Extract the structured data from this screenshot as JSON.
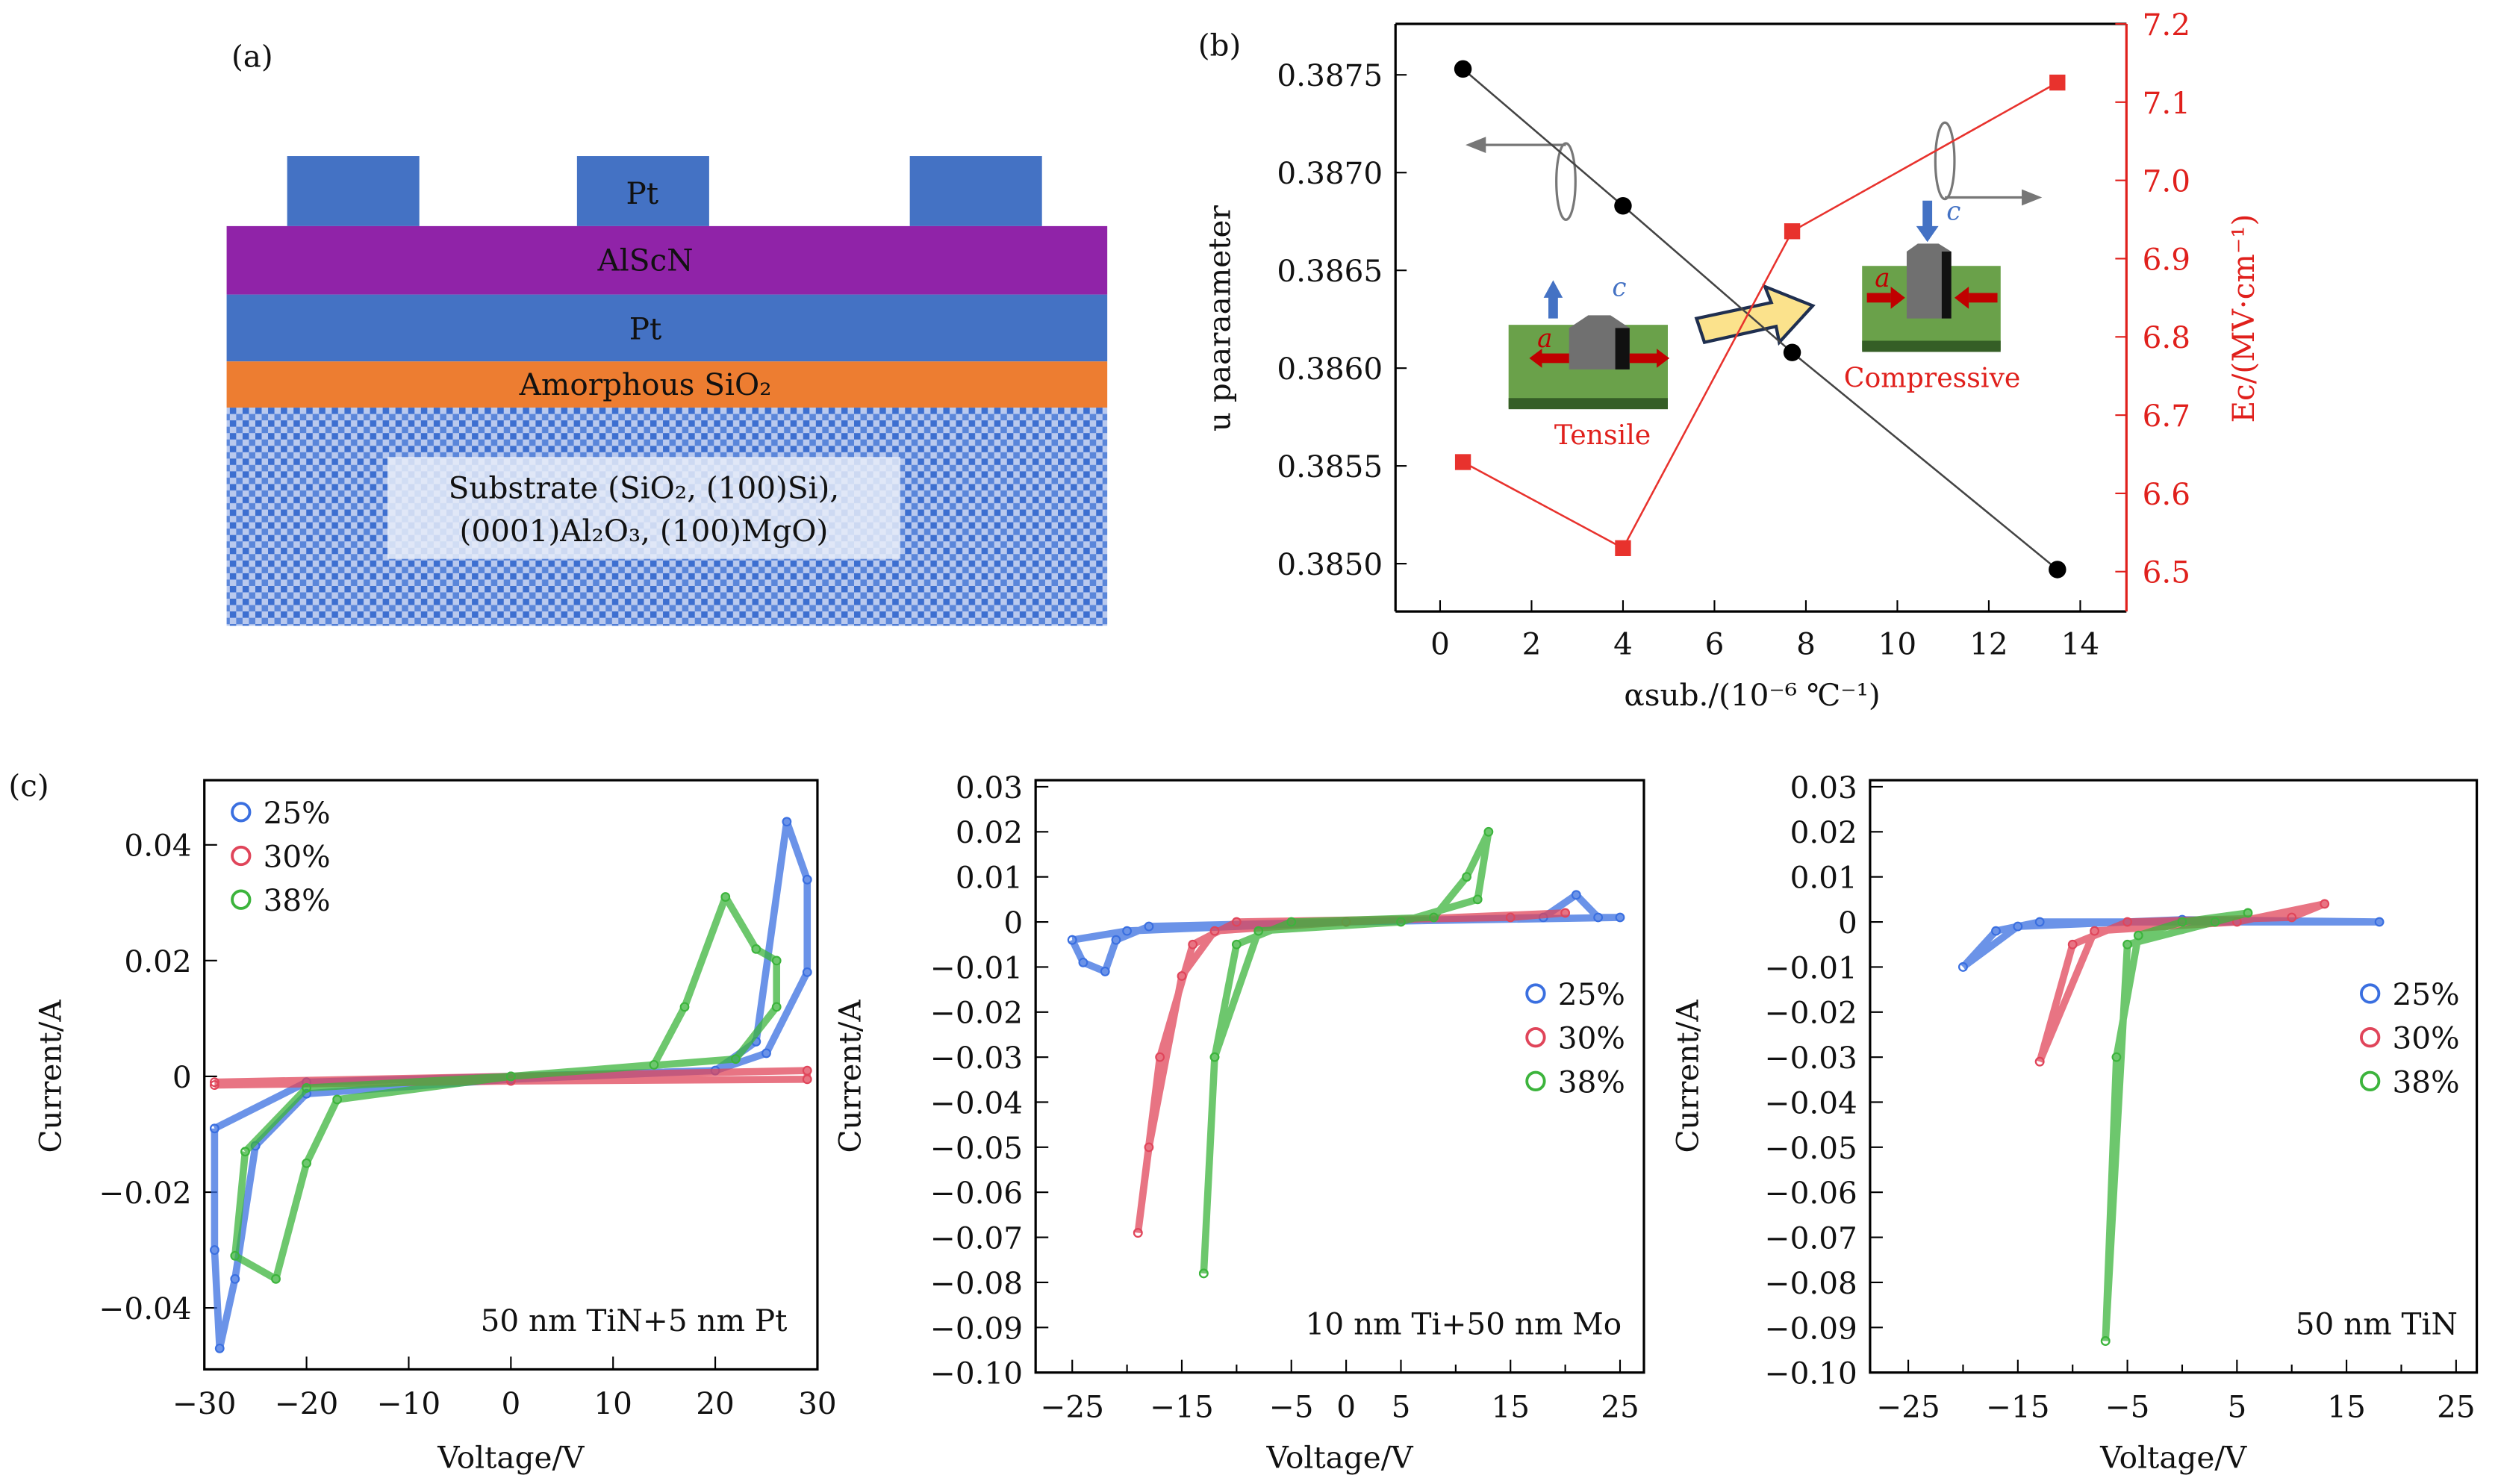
{
  "panel_a": {
    "label": "(a)",
    "electrode": "Pt",
    "layer_alscn": "AlScN",
    "layer_pt": "Pt",
    "layer_sio2": "Amorphous SiO₂",
    "substrate_line1": "Substrate (SiO₂, (100)Si),",
    "substrate_line2": "(0001)Al₂O₃, (100)MgO)",
    "colors": {
      "pt": "#4472c4",
      "alscn": "#9023a8",
      "sio2": "#ed7d31",
      "substrate": "#3d6fd0"
    }
  },
  "panel_b": {
    "label": "(b)",
    "inset_tensile": "Tensile",
    "inset_compressive": "Compressive",
    "inset_a": "a",
    "inset_c": "c"
  },
  "panel_c": {
    "label": "(c)"
  },
  "chart_data": [
    {
      "type": "line",
      "id": "b",
      "xlabel": "αsub./(10⁻⁶ ℃⁻¹)",
      "ylabel": "u paaraameter",
      "y2label": "Ec/(MV·cm⁻¹)",
      "xlim": [
        -1,
        15
      ],
      "ylim": [
        0.3848,
        0.38785
      ],
      "y2lim": [
        6.45,
        7.2
      ],
      "xticks": [
        0,
        2,
        4,
        6,
        8,
        10,
        12,
        14
      ],
      "yticks": [
        "0.3850",
        "0.3855",
        "0.3860",
        "0.3865",
        "0.3870",
        "0.3875"
      ],
      "y2ticks": [
        "6.5",
        "6.6",
        "6.7",
        "6.8",
        "6.9",
        "7.0",
        "7.1",
        "7.2"
      ],
      "series": [
        {
          "name": "u parameter",
          "axis": "left",
          "color": "#000000",
          "marker": "circle",
          "x": [
            0.5,
            4,
            7.7,
            13.5
          ],
          "y": [
            0.38753,
            0.38683,
            0.38608,
            0.38497
          ]
        },
        {
          "name": "Ec",
          "axis": "right",
          "color": "#e8322d",
          "marker": "square",
          "x": [
            0.5,
            4,
            7.7,
            13.5
          ],
          "y": [
            6.64,
            6.53,
            6.935,
            7.125
          ]
        }
      ]
    },
    {
      "type": "scatter",
      "id": "c1",
      "xlabel": "Voltage/V",
      "ylabel": "Current/A",
      "annotation": "50 nm TiN+5 nm Pt",
      "xlim": [
        -30,
        30
      ],
      "ylim": [
        -0.0505,
        0.0515
      ],
      "xticks": [
        "−30",
        "−20",
        "−10",
        "0",
        "10",
        "20",
        "30"
      ],
      "xtick_vals": [
        -30,
        -20,
        -10,
        0,
        10,
        20,
        30
      ],
      "yticks": [
        "−0.04",
        "−0.02",
        "0",
        "0.02",
        "0.04"
      ],
      "ytick_vals": [
        -0.04,
        -0.02,
        0,
        0.02,
        0.04
      ],
      "legend": "top-left",
      "series": [
        {
          "name": "25%",
          "color": "#3a6fe0",
          "points": [
            [
              -29,
              -0.009
            ],
            [
              -20,
              -0.001
            ],
            [
              0,
              0
            ],
            [
              20,
              0.001
            ],
            [
              24,
              0.006
            ],
            [
              27,
              0.044
            ],
            [
              29,
              0.034
            ],
            [
              29,
              0.018
            ],
            [
              25,
              0.004
            ],
            [
              20,
              0.001
            ],
            [
              0,
              -0.0005
            ],
            [
              -20,
              -0.003
            ],
            [
              -25,
              -0.012
            ],
            [
              -27,
              -0.035
            ],
            [
              -28.5,
              -0.047
            ],
            [
              -29,
              -0.03
            ],
            [
              -29,
              -0.009
            ]
          ]
        },
        {
          "name": "30%",
          "color": "#e0455a",
          "points": [
            [
              -29,
              -0.001
            ],
            [
              0,
              0
            ],
            [
              29,
              0.001
            ],
            [
              29,
              -0.0005
            ],
            [
              0,
              -0.0008
            ],
            [
              -29,
              -0.0015
            ]
          ]
        },
        {
          "name": "38%",
          "color": "#3cb43c",
          "points": [
            [
              -26,
              -0.013
            ],
            [
              -20,
              -0.002
            ],
            [
              0,
              0
            ],
            [
              14,
              0.002
            ],
            [
              17,
              0.012
            ],
            [
              21,
              0.031
            ],
            [
              24,
              0.022
            ],
            [
              26,
              0.02
            ],
            [
              26,
              0.012
            ],
            [
              22,
              0.003
            ],
            [
              0,
              0
            ],
            [
              -17,
              -0.004
            ],
            [
              -20,
              -0.015
            ],
            [
              -23,
              -0.035
            ],
            [
              -27,
              -0.031
            ],
            [
              -26,
              -0.013
            ]
          ]
        }
      ]
    },
    {
      "type": "scatter",
      "id": "c2",
      "xlabel": "Voltage/V",
      "ylabel": "Current/A",
      "annotation": "10 nm Ti+50 nm Mo",
      "xlim": [
        -28,
        26
      ],
      "ylim": [
        -0.1,
        0.03
      ],
      "xticks": [
        "−25",
        "−15",
        "−5",
        "0",
        "5",
        "15",
        "25"
      ],
      "xtick_vals": [
        -25,
        -15,
        -5,
        0,
        5,
        15,
        25
      ],
      "minor_xtick_vals": [
        -20,
        -10,
        10,
        20
      ],
      "yticks": [
        "−0.10",
        "−0.09",
        "−0.08",
        "−0.07",
        "−0.06",
        "−0.05",
        "−0.04",
        "−0.03",
        "−0.02",
        "−0.01",
        "0",
        "0.01",
        "0.02",
        "0.03"
      ],
      "ytick_vals": [
        -0.1,
        -0.09,
        -0.08,
        -0.07,
        -0.06,
        -0.05,
        -0.04,
        -0.03,
        -0.02,
        -0.01,
        0,
        0.01,
        0.02,
        0.03
      ],
      "legend": "right",
      "series": [
        {
          "name": "25%",
          "color": "#3a6fe0",
          "points": [
            [
              -25,
              -0.004
            ],
            [
              -24,
              -0.009
            ],
            [
              -22,
              -0.011
            ],
            [
              -21,
              -0.004
            ],
            [
              -18,
              -0.001
            ],
            [
              0,
              0
            ],
            [
              18,
              0.001
            ],
            [
              21,
              0.006
            ],
            [
              23,
              0.001
            ],
            [
              25,
              0.001
            ],
            [
              0,
              0
            ],
            [
              -20,
              -0.002
            ],
            [
              -25,
              -0.004
            ]
          ]
        },
        {
          "name": "30%",
          "color": "#e0455a",
          "points": [
            [
              -19,
              -0.069
            ],
            [
              -17,
              -0.03
            ],
            [
              -14,
              -0.005
            ],
            [
              -10,
              0
            ],
            [
              15,
              0.001
            ],
            [
              20,
              0.002
            ],
            [
              0,
              0
            ],
            [
              -12,
              -0.002
            ],
            [
              -15,
              -0.012
            ],
            [
              -18,
              -0.05
            ],
            [
              -19,
              -0.069
            ]
          ]
        },
        {
          "name": "38%",
          "color": "#3cb43c",
          "points": [
            [
              -13,
              -0.078
            ],
            [
              -12,
              -0.03
            ],
            [
              -10,
              -0.005
            ],
            [
              -5,
              0
            ],
            [
              8,
              0.001
            ],
            [
              11,
              0.01
            ],
            [
              13,
              0.02
            ],
            [
              12,
              0.005
            ],
            [
              5,
              0
            ],
            [
              -8,
              -0.002
            ],
            [
              -12,
              -0.03
            ],
            [
              -13,
              -0.078
            ]
          ]
        }
      ]
    },
    {
      "type": "scatter",
      "id": "c3",
      "xlabel": "Voltage/V",
      "ylabel": "Current/A",
      "annotation": "50 nm TiN",
      "xlim": [
        -28,
        26
      ],
      "ylim": [
        -0.1,
        0.03
      ],
      "xticks": [
        "−25",
        "−15",
        "−5",
        "5",
        "15",
        "25"
      ],
      "xtick_vals": [
        -25,
        -15,
        -5,
        5,
        15,
        25
      ],
      "minor_xtick_vals": [
        -20,
        -10,
        0,
        10,
        20
      ],
      "yticks": [
        "−0.10",
        "−0.09",
        "−0.08",
        "−0.07",
        "−0.06",
        "−0.05",
        "−0.04",
        "−0.03",
        "−0.02",
        "−0.01",
        "0",
        "0.01",
        "0.02",
        "0.03"
      ],
      "ytick_vals": [
        -0.1,
        -0.09,
        -0.08,
        -0.07,
        -0.06,
        -0.05,
        -0.04,
        -0.03,
        -0.02,
        -0.01,
        0,
        0.01,
        0.02,
        0.03
      ],
      "legend": "right",
      "series": [
        {
          "name": "25%",
          "color": "#3a6fe0",
          "points": [
            [
              -20,
              -0.01
            ],
            [
              -17,
              -0.002
            ],
            [
              -13,
              0
            ],
            [
              18,
              0
            ],
            [
              0,
              0.0005
            ],
            [
              -15,
              -0.001
            ],
            [
              -20,
              -0.01
            ]
          ]
        },
        {
          "name": "30%",
          "color": "#e0455a",
          "points": [
            [
              -13,
              -0.031
            ],
            [
              -10,
              -0.005
            ],
            [
              -5,
              0
            ],
            [
              10,
              0.001
            ],
            [
              13,
              0.004
            ],
            [
              5,
              0
            ],
            [
              -8,
              -0.002
            ],
            [
              -13,
              -0.031
            ]
          ]
        },
        {
          "name": "38%",
          "color": "#3cb43c",
          "points": [
            [
              -7,
              -0.093
            ],
            [
              -6,
              -0.03
            ],
            [
              -4,
              -0.003
            ],
            [
              0,
              0
            ],
            [
              6,
              0.002
            ],
            [
              3,
              0
            ],
            [
              -5,
              -0.005
            ],
            [
              -7,
              -0.093
            ]
          ]
        }
      ]
    }
  ]
}
